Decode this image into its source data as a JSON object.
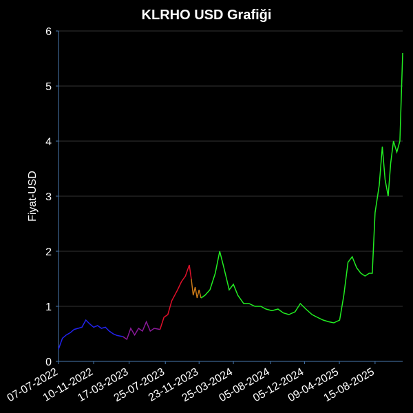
{
  "chart_data": {
    "type": "line",
    "title": "KLRHO USD Grafiği",
    "ylabel": "Fiyat-USD",
    "xlim": [
      "2022-07-07",
      "2025-11-22"
    ],
    "xticks": [
      {
        "value": "2022-07-07",
        "label": "07-07-2022"
      },
      {
        "value": "2022-11-10",
        "label": "10-11-2022"
      },
      {
        "value": "2023-03-17",
        "label": "17-03-2023"
      },
      {
        "value": "2023-07-25",
        "label": "25-07-2023"
      },
      {
        "value": "2023-11-23",
        "label": "23-11-2023"
      },
      {
        "value": "2024-03-25",
        "label": "25-03-2024"
      },
      {
        "value": "2024-08-05",
        "label": "05-08-2024"
      },
      {
        "value": "2024-12-05",
        "label": "05-12-2024"
      },
      {
        "value": "2025-04-09",
        "label": "09-04-2025"
      },
      {
        "value": "2025-08-15",
        "label": "15-08-2025"
      }
    ],
    "ylim": [
      0,
      6
    ],
    "yticks": [
      0,
      1,
      2,
      3,
      4,
      5,
      6
    ],
    "grid": true,
    "series": [
      {
        "color": "#2222ee",
        "x": [
          "2022-07-07",
          "2022-07-21",
          "2022-08-04",
          "2022-08-18",
          "2022-09-01",
          "2022-09-15",
          "2022-09-29",
          "2022-10-13",
          "2022-10-27",
          "2022-11-10",
          "2022-11-24",
          "2022-12-08",
          "2022-12-22",
          "2023-01-05",
          "2023-01-19",
          "2023-02-02",
          "2023-02-23"
        ],
        "values": [
          0.22,
          0.42,
          0.48,
          0.52,
          0.58,
          0.6,
          0.62,
          0.75,
          0.68,
          0.62,
          0.65,
          0.6,
          0.62,
          0.55,
          0.5,
          0.47,
          0.45
        ]
      },
      {
        "color": "#8a1a9a",
        "x": [
          "2023-02-23",
          "2023-03-09",
          "2023-03-23",
          "2023-04-06",
          "2023-04-20",
          "2023-05-04",
          "2023-05-18",
          "2023-06-01",
          "2023-06-15",
          "2023-07-06"
        ],
        "values": [
          0.45,
          0.4,
          0.6,
          0.48,
          0.6,
          0.55,
          0.72,
          0.55,
          0.6,
          0.58
        ]
      },
      {
        "color": "#e0102a",
        "x": [
          "2023-07-06",
          "2023-07-20",
          "2023-08-03",
          "2023-08-17",
          "2023-09-07",
          "2023-09-21",
          "2023-10-05",
          "2023-10-19",
          "2023-10-26"
        ],
        "values": [
          0.58,
          0.8,
          0.85,
          1.1,
          1.3,
          1.45,
          1.55,
          1.75,
          1.5
        ]
      },
      {
        "color": "#c87818",
        "x": [
          "2023-10-26",
          "2023-11-02",
          "2023-11-09",
          "2023-11-16",
          "2023-11-23",
          "2023-11-30"
        ],
        "values": [
          1.5,
          1.2,
          1.35,
          1.15,
          1.3,
          1.15
        ]
      },
      {
        "color": "#22ee22",
        "x": [
          "2023-11-30",
          "2023-12-14",
          "2024-01-01",
          "2024-01-20",
          "2024-02-05",
          "2024-02-20",
          "2024-03-10",
          "2024-03-25",
          "2024-04-10",
          "2024-05-01",
          "2024-05-20",
          "2024-06-10",
          "2024-07-01",
          "2024-07-20",
          "2024-08-10",
          "2024-09-01",
          "2024-09-20",
          "2024-10-10",
          "2024-11-01",
          "2024-11-20",
          "2024-12-10",
          "2025-01-01",
          "2025-01-20",
          "2025-02-10",
          "2025-03-01",
          "2025-03-20",
          "2025-04-10",
          "2025-04-25",
          "2025-05-10",
          "2025-05-25",
          "2025-06-10",
          "2025-06-25",
          "2025-07-10",
          "2025-07-25",
          "2025-08-05",
          "2025-08-15",
          "2025-08-30",
          "2025-09-10",
          "2025-09-20",
          "2025-10-01",
          "2025-10-10",
          "2025-10-20",
          "2025-11-01",
          "2025-11-12",
          "2025-11-22"
        ],
        "values": [
          1.15,
          1.2,
          1.3,
          1.6,
          2.0,
          1.7,
          1.3,
          1.4,
          1.2,
          1.05,
          1.05,
          1.0,
          1.0,
          0.95,
          0.92,
          0.95,
          0.88,
          0.85,
          0.9,
          1.05,
          0.95,
          0.85,
          0.8,
          0.75,
          0.72,
          0.7,
          0.75,
          1.2,
          1.8,
          1.9,
          1.7,
          1.6,
          1.55,
          1.6,
          1.6,
          2.7,
          3.2,
          3.9,
          3.3,
          3.0,
          3.6,
          4.0,
          3.8,
          4.0,
          5.6
        ]
      }
    ]
  }
}
